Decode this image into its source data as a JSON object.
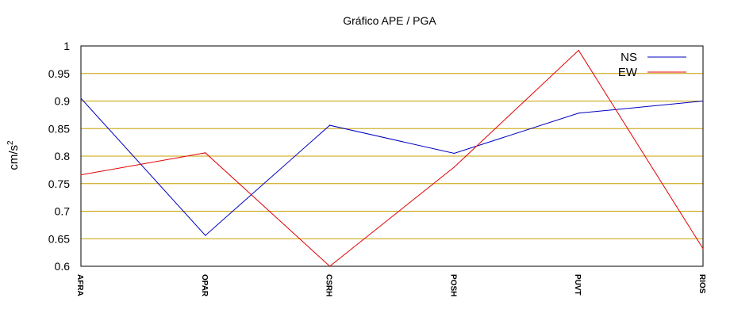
{
  "chart_data": {
    "type": "line",
    "title": "Gráfico  APE / PGA",
    "ylabel": "cm/s",
    "ylabel_sup": "2",
    "xlabel": "",
    "categories": [
      "AFRA",
      "OPAR",
      "CSRH",
      "POSH",
      "PUVT",
      "RIOS"
    ],
    "ylim": [
      0.6,
      1.0
    ],
    "yticks": [
      0.6,
      0.65,
      0.7,
      0.75,
      0.8,
      0.85,
      0.9,
      0.95,
      1
    ],
    "ytick_labels": [
      "0.6",
      "0.65",
      "0.7",
      "0.75",
      "0.8",
      "0.85",
      "0.9",
      "0.95",
      "1"
    ],
    "grid": true,
    "grid_color": "#c8a000",
    "legend_position": "top-right",
    "series": [
      {
        "name": "NS",
        "color": "#0000c0",
        "values": [
          0.905,
          0.656,
          0.856,
          0.805,
          0.878,
          0.9
        ]
      },
      {
        "name": "EW",
        "color": "#e00000",
        "values": [
          0.766,
          0.806,
          0.6,
          0.78,
          0.992,
          0.632
        ]
      }
    ]
  }
}
